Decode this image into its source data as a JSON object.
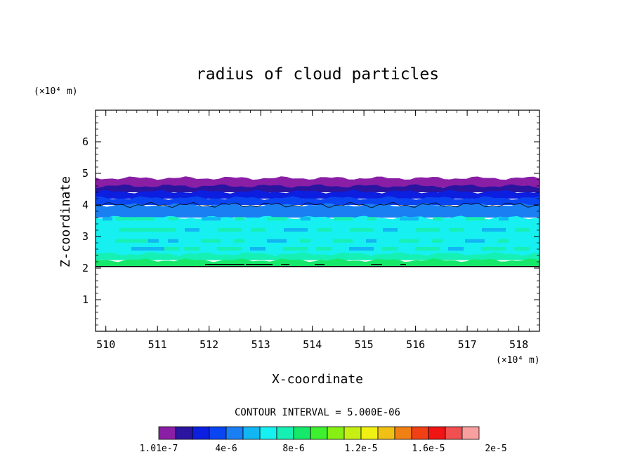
{
  "chart_data": {
    "type": "heatmap",
    "title": "radius of cloud particles",
    "xlabel": "X-coordinate",
    "ylabel": "Z-coordinate",
    "x_unit": "(×10⁴ m)",
    "y_unit": "(×10⁴ m)",
    "xlim": [
      509.8,
      518.4
    ],
    "ylim": [
      0,
      7
    ],
    "x_ticks": [
      510,
      511,
      512,
      513,
      514,
      515,
      516,
      517,
      518
    ],
    "y_ticks": [
      1,
      2,
      3,
      4,
      5,
      6
    ],
    "contour_interval": "CONTOUR INTERVAL = 5.000E-06",
    "colorbar": {
      "colors": [
        "#8a1fa6",
        "#2a14a0",
        "#0c1ee0",
        "#0a45f2",
        "#1a7ff2",
        "#12b6f2",
        "#16f0f0",
        "#16f0b4",
        "#16e86a",
        "#3ef02e",
        "#86f014",
        "#c6f014",
        "#f0f014",
        "#f0c014",
        "#f08014",
        "#f04014",
        "#f01414",
        "#f05050",
        "#f8a0a0"
      ],
      "tick_labels": [
        "1.01e-7",
        "4e-6",
        "8e-6",
        "1.2e-5",
        "1.6e-5",
        "2e-5"
      ],
      "tick_positions": [
        0,
        2,
        4,
        6,
        8,
        10
      ]
    },
    "bands": [
      {
        "z_bottom": 4.55,
        "z_top": 4.85,
        "color_index": 0
      },
      {
        "z_bottom": 4.4,
        "z_top": 4.6,
        "color_index": 1
      },
      {
        "z_bottom": 4.2,
        "z_top": 4.42,
        "color_index": 2
      },
      {
        "z_bottom": 4.0,
        "z_top": 4.22,
        "color_index": 3
      },
      {
        "z_bottom": 3.6,
        "z_top": 4.0,
        "color_index": 4
      },
      {
        "z_bottom": 2.4,
        "z_top": 3.6,
        "color_index": 6
      },
      {
        "z_bottom": 2.25,
        "z_top": 2.45,
        "color_index": 7
      },
      {
        "z_bottom": 2.05,
        "z_top": 2.25,
        "color_index": 8
      }
    ],
    "contour_level_z": 4.0,
    "cloud_base_z": 2.05
  }
}
